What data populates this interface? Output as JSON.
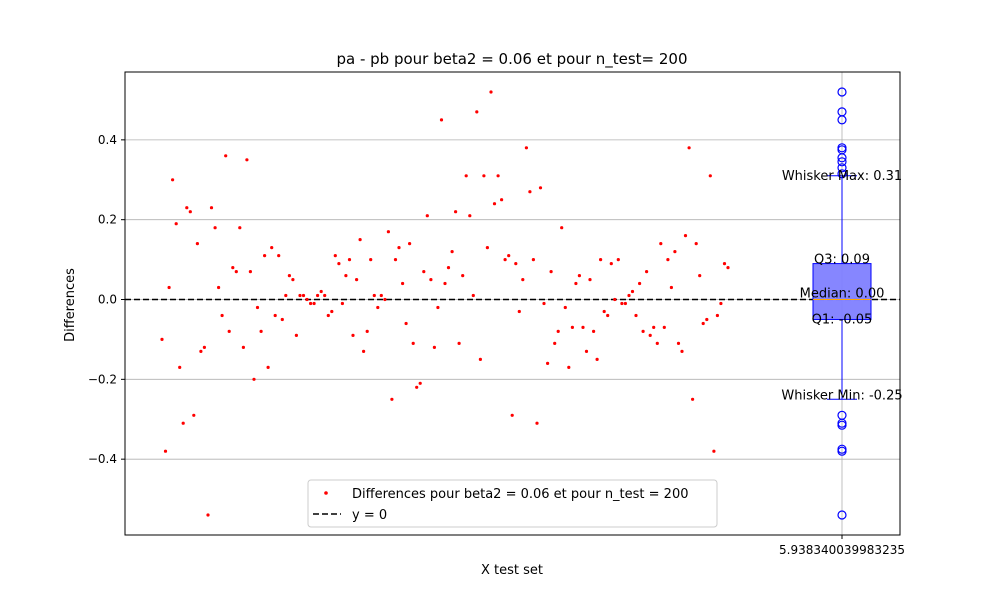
{
  "chart_data": {
    "type": "scatter",
    "title": "pa - pb  pour beta2 = 0.06 et pour n_test= 200",
    "xlabel": "X test set",
    "ylabel": "Differences",
    "ylim": [
      -0.59,
      0.57
    ],
    "yticks": [
      -0.4,
      -0.2,
      0.0,
      0.2,
      0.4
    ],
    "ytick_labels": [
      "−0.4",
      "−0.2",
      "0.0",
      "0.2",
      "0.4"
    ],
    "xtick_label": "5.938340039983235",
    "grid": "horizontal",
    "legend_position": "bottom-center",
    "colors": {
      "points": "#ff0000",
      "box": "#0000ff",
      "box_fill": "#7f7fff",
      "ref_line": "#000000"
    },
    "reference_line": {
      "y": 0.0,
      "style": "dashed",
      "name": "y = 0"
    },
    "legend": [
      {
        "label": "Differences pour beta2 = 0.06 et pour n_test = 200",
        "marker": "dot",
        "color": "#ff0000"
      },
      {
        "label": "y = 0",
        "marker": "dashed-line",
        "color": "#000000"
      }
    ],
    "series": [
      {
        "name": "Differences pour beta2 = 0.06 et pour n_test = 200",
        "y": [
          -0.1,
          -0.38,
          0.03,
          0.3,
          0.19,
          -0.17,
          -0.31,
          0.23,
          0.22,
          -0.29,
          0.14,
          -0.13,
          -0.12,
          -0.54,
          0.23,
          0.18,
          0.03,
          -0.04,
          0.36,
          -0.08,
          0.08,
          0.07,
          0.18,
          -0.12,
          0.35,
          0.07,
          -0.2,
          -0.02,
          -0.08,
          0.11,
          -0.17,
          0.13,
          -0.04,
          0.11,
          -0.05,
          0.01,
          0.06,
          0.05,
          -0.09,
          0.01,
          0.01,
          0.0,
          -0.01,
          -0.01,
          0.01,
          0.02,
          0.01,
          -0.04,
          -0.03,
          0.11,
          0.09,
          -0.01,
          0.06,
          0.1,
          -0.09,
          0.05,
          0.15,
          -0.13,
          -0.08,
          0.1,
          0.01,
          -0.02,
          0.01,
          0.0,
          0.17,
          -0.25,
          0.1,
          0.13,
          0.04,
          -0.06,
          0.14,
          -0.11,
          -0.22,
          -0.21,
          0.07,
          0.21,
          0.05,
          -0.12,
          -0.02,
          0.45,
          0.04,
          0.08,
          0.12,
          0.22,
          -0.11,
          0.06,
          0.31,
          0.21,
          0.01,
          0.47,
          -0.15,
          0.31,
          0.13,
          0.52,
          0.24,
          0.31,
          0.25,
          0.1,
          0.11,
          -0.29,
          0.09,
          -0.03,
          0.05,
          0.38,
          0.27,
          0.1,
          -0.31,
          0.28,
          -0.01,
          -0.16,
          0.07,
          -0.11,
          -0.08,
          0.18,
          -0.02,
          -0.17,
          -0.07,
          0.04,
          0.06,
          -0.07,
          -0.13,
          0.05,
          -0.08,
          -0.15,
          0.1,
          -0.03,
          -0.04,
          0.09,
          0.0,
          0.1,
          -0.01,
          -0.01,
          0.01,
          0.02,
          -0.04,
          0.04,
          -0.08,
          0.07,
          -0.09,
          -0.07,
          -0.11,
          0.14,
          -0.07,
          0.1,
          0.03,
          0.12,
          -0.11,
          -0.13,
          0.16,
          0.38,
          -0.25,
          0.14,
          0.06,
          -0.06,
          -0.05,
          0.31,
          -0.38,
          -0.04,
          -0.01,
          0.09,
          0.08
        ]
      }
    ],
    "boxplot": {
      "q1": -0.05,
      "median": 0.0,
      "q3": 0.09,
      "whisker_min": -0.25,
      "whisker_max": 0.31,
      "outliers": [
        0.52,
        0.47,
        0.45,
        0.38,
        0.375,
        0.355,
        0.345,
        0.33,
        0.315,
        -0.29,
        -0.31,
        -0.315,
        -0.375,
        -0.38,
        -0.54
      ],
      "labels": {
        "whisker_max": "Whisker Max: 0.31",
        "q3": "Q3: 0.09",
        "median": "Median: 0.00",
        "q1": "Q1: -0.05",
        "whisker_min": "Whisker Min: -0.25"
      }
    }
  }
}
